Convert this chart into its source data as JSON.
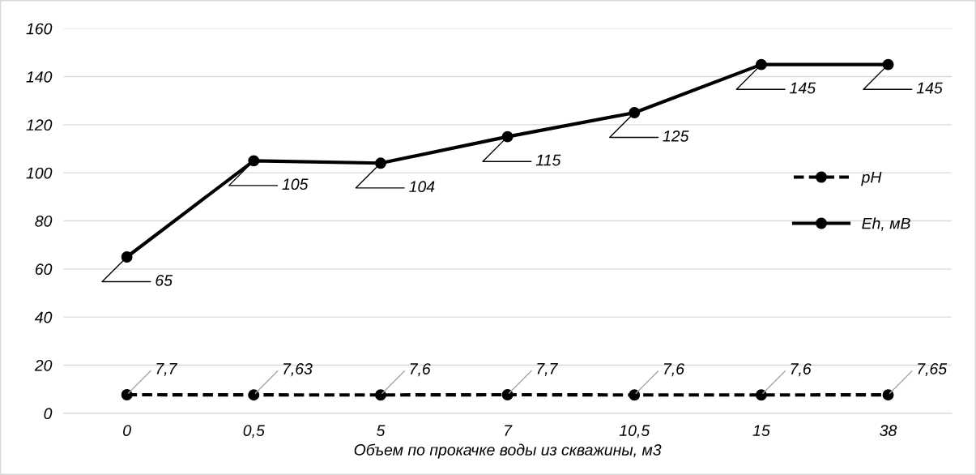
{
  "chart_data": {
    "type": "line",
    "xlabel": "Объем по прокачке воды из скважины, м3",
    "categories": [
      "0",
      "0,5",
      "5",
      "7",
      "10,5",
      "15",
      "38"
    ],
    "series": [
      {
        "name": "pH",
        "color": "#000000",
        "line_style": "dashed",
        "values": [
          7.7,
          7.63,
          7.6,
          7.7,
          7.6,
          7.6,
          7.65
        ],
        "value_labels": [
          "7,7",
          "7,63",
          "7,6",
          "7,7",
          "7,6",
          "7,6",
          "7,65"
        ]
      },
      {
        "name": "Eh, мВ",
        "color": "#000000",
        "line_style": "solid",
        "values": [
          65,
          105,
          104,
          115,
          125,
          145,
          145
        ],
        "value_labels": [
          "65",
          "105",
          "104",
          "115",
          "125",
          "145",
          "145"
        ]
      }
    ],
    "ylim": [
      0,
      160
    ],
    "yticks": [
      0,
      20,
      40,
      60,
      80,
      100,
      120,
      140,
      160
    ],
    "grid": "y",
    "legend": "right",
    "marker": "circle"
  }
}
